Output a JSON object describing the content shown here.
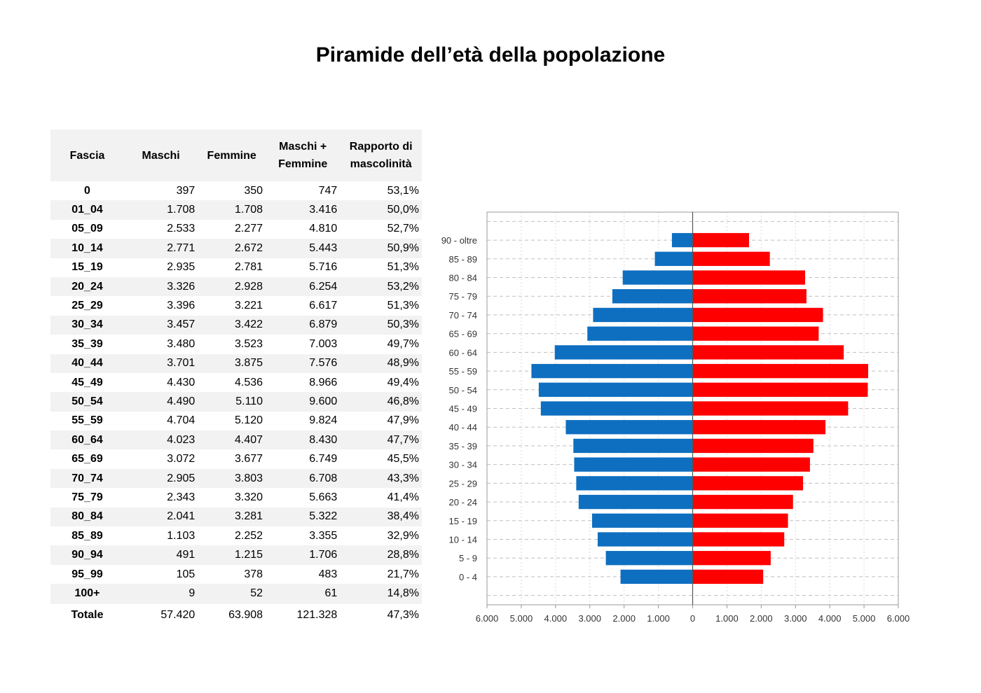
{
  "title": "Piramide dell’età della popolazione",
  "table": {
    "headers": [
      "Fascia",
      "Maschi",
      "Femmine",
      "Maschi + Femmine",
      "Rapporto di mascolinità"
    ],
    "rows": [
      [
        "0",
        "397",
        "350",
        "747",
        "53,1%"
      ],
      [
        "01_04",
        "1.708",
        "1.708",
        "3.416",
        "50,0%"
      ],
      [
        "05_09",
        "2.533",
        "2.277",
        "4.810",
        "52,7%"
      ],
      [
        "10_14",
        "2.771",
        "2.672",
        "5.443",
        "50,9%"
      ],
      [
        "15_19",
        "2.935",
        "2.781",
        "5.716",
        "51,3%"
      ],
      [
        "20_24",
        "3.326",
        "2.928",
        "6.254",
        "53,2%"
      ],
      [
        "25_29",
        "3.396",
        "3.221",
        "6.617",
        "51,3%"
      ],
      [
        "30_34",
        "3.457",
        "3.422",
        "6.879",
        "50,3%"
      ],
      [
        "35_39",
        "3.480",
        "3.523",
        "7.003",
        "49,7%"
      ],
      [
        "40_44",
        "3.701",
        "3.875",
        "7.576",
        "48,9%"
      ],
      [
        "45_49",
        "4.430",
        "4.536",
        "8.966",
        "49,4%"
      ],
      [
        "50_54",
        "4.490",
        "5.110",
        "9.600",
        "46,8%"
      ],
      [
        "55_59",
        "4.704",
        "5.120",
        "9.824",
        "47,9%"
      ],
      [
        "60_64",
        "4.023",
        "4.407",
        "8.430",
        "47,7%"
      ],
      [
        "65_69",
        "3.072",
        "3.677",
        "6.749",
        "45,5%"
      ],
      [
        "70_74",
        "2.905",
        "3.803",
        "6.708",
        "43,3%"
      ],
      [
        "75_79",
        "2.343",
        "3.320",
        "5.663",
        "41,4%"
      ],
      [
        "80_84",
        "2.041",
        "3.281",
        "5.322",
        "38,4%"
      ],
      [
        "85_89",
        "1.103",
        "2.252",
        "3.355",
        "32,9%"
      ],
      [
        "90_94",
        "491",
        "1.215",
        "1.706",
        "28,8%"
      ],
      [
        "95_99",
        "105",
        "378",
        "483",
        "21,7%"
      ],
      [
        "100+",
        "9",
        "52",
        "61",
        "14,8%"
      ]
    ],
    "total": [
      "Totale",
      "57.420",
      "63.908",
      "121.328",
      "47,3%"
    ]
  },
  "chart_data": {
    "type": "bar",
    "orientation": "horizontal",
    "categories": [
      "90 - oltre",
      "85 - 89",
      "80 - 84",
      "75 - 79",
      "70 - 74",
      "65 - 69",
      "60 - 64",
      "55 - 59",
      "50 - 54",
      "45 - 49",
      "40 - 44",
      "35 - 39",
      "30 - 34",
      "25 - 29",
      "20 - 24",
      "15 - 19",
      "10 - 14",
      "5 - 9",
      "0 - 4"
    ],
    "series": [
      {
        "color": "#0e6fc1",
        "values": [
          605,
          1103,
          2041,
          2343,
          2905,
          3072,
          4023,
          4704,
          4490,
          4430,
          3701,
          3480,
          3457,
          3396,
          3326,
          2935,
          2771,
          2533,
          2105
        ]
      },
      {
        "color": "#ff0000",
        "values": [
          1645,
          2252,
          3281,
          3320,
          3803,
          3677,
          4407,
          5120,
          5110,
          4536,
          3875,
          3523,
          3422,
          3221,
          2928,
          2781,
          2672,
          2277,
          2058
        ]
      }
    ],
    "xlim": [
      -6000,
      6000
    ],
    "xticks": [
      "6.000",
      "5.000",
      "4.000",
      "3.000",
      "2.000",
      "1.000",
      "0",
      "1.000",
      "2.000",
      "3.000",
      "4.000",
      "5.000",
      "6.000"
    ],
    "grid": true
  }
}
